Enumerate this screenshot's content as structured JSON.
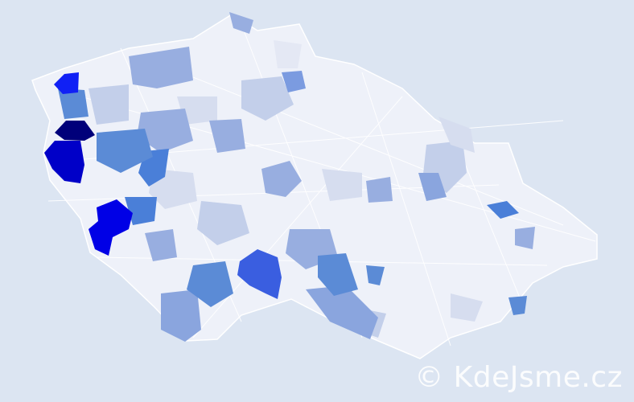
{
  "map": {
    "background_color": "#dce5f2",
    "base_region_color": "#eef1f9",
    "border_color": "#ffffff",
    "scale_colors": [
      "#e4e8f4",
      "#c3cfea",
      "#98aee0",
      "#5b8bd6",
      "#3a5ee0",
      "#1020f5",
      "#0000c8",
      "#00007a"
    ]
  },
  "watermark": {
    "text": "© KdeJsme.cz"
  }
}
